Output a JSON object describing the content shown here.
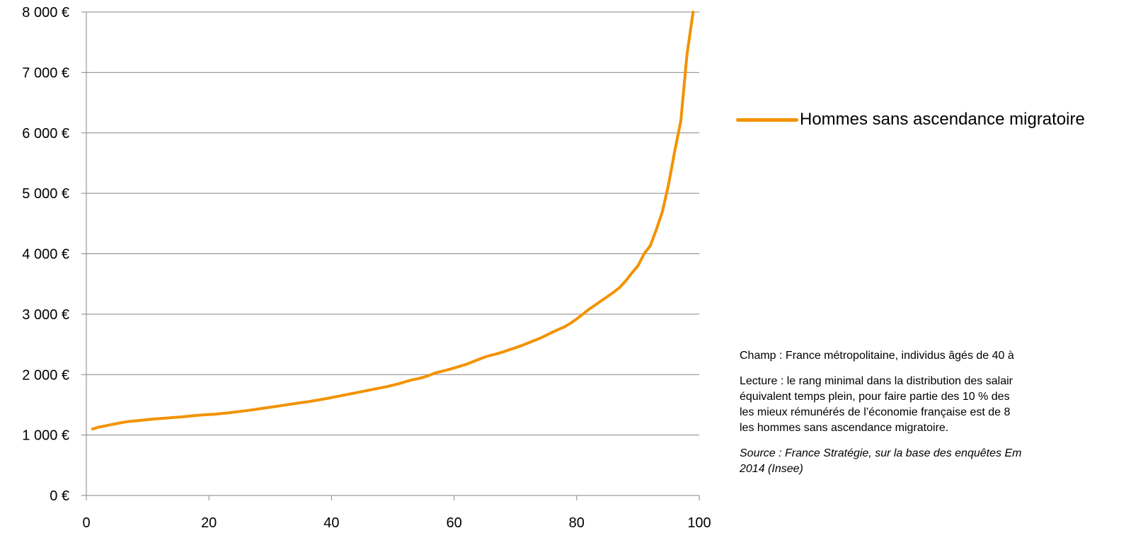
{
  "chart_data": {
    "type": "line",
    "title": "",
    "xlabel": "",
    "ylabel": "",
    "xlim": [
      0,
      100
    ],
    "ylim": [
      0,
      8000
    ],
    "x_ticks": [
      "0",
      "20",
      "40",
      "60",
      "80",
      "100"
    ],
    "y_ticks": [
      "0 €",
      "1 000 €",
      "2 000 €",
      "3 000 €",
      "4 000 €",
      "5 000 €",
      "6 000 €",
      "7 000 €",
      "8 000 €"
    ],
    "grid": "horizontal",
    "legend_position": "right",
    "series": [
      {
        "name": "Hommes sans ascendance migratoire",
        "color": "#F39200",
        "x": [
          1,
          2,
          3,
          4,
          5,
          6,
          7,
          8,
          9,
          10,
          11,
          12,
          13,
          14,
          15,
          16,
          17,
          18,
          19,
          20,
          21,
          22,
          23,
          24,
          25,
          26,
          27,
          28,
          29,
          30,
          31,
          32,
          33,
          34,
          35,
          36,
          37,
          38,
          39,
          40,
          41,
          42,
          43,
          44,
          45,
          46,
          47,
          48,
          49,
          50,
          51,
          52,
          53,
          54,
          55,
          56,
          57,
          58,
          59,
          60,
          61,
          62,
          63,
          64,
          65,
          66,
          67,
          68,
          69,
          70,
          71,
          72,
          73,
          74,
          75,
          76,
          77,
          78,
          79,
          80,
          81,
          82,
          83,
          84,
          85,
          86,
          87,
          88,
          89,
          90,
          91,
          92,
          93,
          94,
          95,
          96,
          97,
          98,
          99
        ],
        "y": [
          1100,
          1130,
          1150,
          1170,
          1190,
          1210,
          1225,
          1235,
          1245,
          1255,
          1265,
          1272,
          1280,
          1288,
          1295,
          1305,
          1315,
          1325,
          1333,
          1340,
          1345,
          1355,
          1365,
          1378,
          1390,
          1402,
          1415,
          1430,
          1445,
          1460,
          1475,
          1490,
          1505,
          1520,
          1535,
          1548,
          1565,
          1582,
          1600,
          1620,
          1640,
          1660,
          1680,
          1700,
          1720,
          1740,
          1760,
          1780,
          1800,
          1825,
          1850,
          1880,
          1910,
          1930,
          1955,
          1990,
          2030,
          2055,
          2080,
          2110,
          2140,
          2170,
          2210,
          2250,
          2290,
          2320,
          2345,
          2375,
          2410,
          2445,
          2480,
          2520,
          2560,
          2600,
          2650,
          2700,
          2745,
          2790,
          2850,
          2920,
          3000,
          3080,
          3150,
          3220,
          3290,
          3360,
          3440,
          3550,
          3680,
          3800,
          4000,
          4130,
          4400,
          4700,
          5150,
          5700,
          6200,
          7300,
          8000
        ]
      }
    ]
  },
  "notes": {
    "champ": "Champ : France métropolitaine, individus âgés de 40 à",
    "lecture": "Lecture : le rang minimal dans la distribution des salair\néquivalent temps plein, pour faire partie des 10 % des\nles mieux rémunérés de l’économie française est de 8\nles hommes sans ascendance migratoire.",
    "source": "Source : France Stratégie, sur la base des enquêtes Em\n2014 (Insee)"
  }
}
